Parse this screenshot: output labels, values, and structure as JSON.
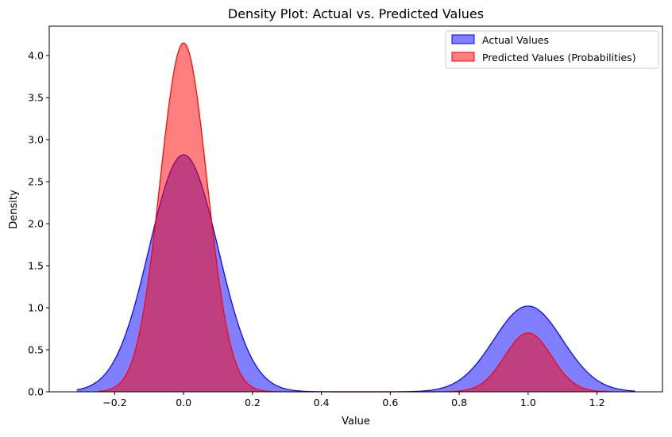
{
  "chart_data": {
    "type": "area",
    "title": "Density Plot: Actual vs. Predicted Values",
    "xlabel": "Value",
    "ylabel": "Density",
    "xlim": [
      -0.39,
      1.39
    ],
    "ylim": [
      0,
      4.35
    ],
    "x_ticks": [
      -0.2,
      0.0,
      0.2,
      0.4,
      0.6,
      0.8,
      1.0,
      1.2
    ],
    "x_tick_labels": [
      "−0.2",
      "0.0",
      "0.2",
      "0.4",
      "0.6",
      "0.8",
      "1.0",
      "1.2"
    ],
    "y_ticks": [
      0.0,
      0.5,
      1.0,
      1.5,
      2.0,
      2.5,
      3.0,
      3.5,
      4.0
    ],
    "y_tick_labels": [
      "0.0",
      "0.5",
      "1.0",
      "1.5",
      "2.0",
      "2.5",
      "3.0",
      "3.5",
      "4.0"
    ],
    "grid": false,
    "legend_position": "top-right",
    "series": [
      {
        "name": "Actual Values",
        "fill_color": "#0000ff",
        "line_color": "#0000ff",
        "fill_opacity": 0.5,
        "x_range": [
          -0.31,
          1.31
        ],
        "components": [
          {
            "mean": 0.0,
            "peak": 2.82,
            "sigma": 0.1
          },
          {
            "mean": 1.0,
            "peak": 1.02,
            "sigma": 0.1
          }
        ]
      },
      {
        "name": "Predicted Values (Probabilities)",
        "fill_color": "#ff0000",
        "line_color": "#ff0000",
        "fill_opacity": 0.5,
        "x_range": [
          -0.245,
          1.245
        ],
        "components": [
          {
            "mean": 0.0,
            "peak": 4.15,
            "sigma": 0.068
          },
          {
            "mean": 1.0,
            "peak": 0.7,
            "sigma": 0.068
          }
        ]
      }
    ]
  }
}
